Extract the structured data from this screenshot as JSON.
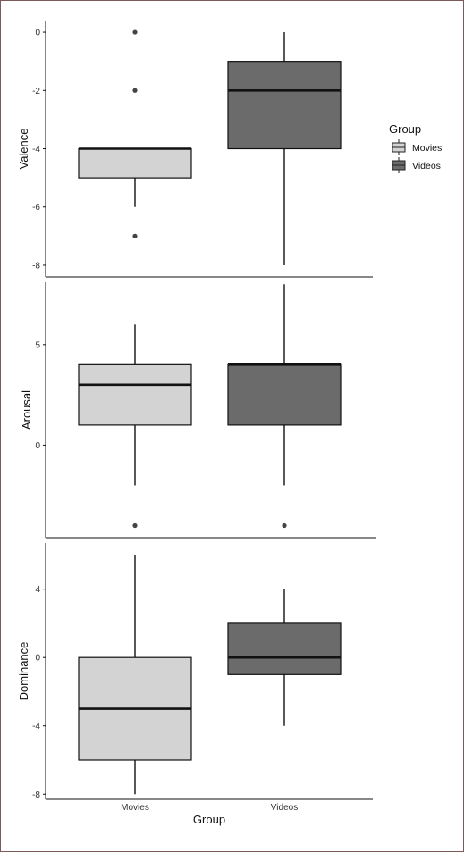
{
  "legend": {
    "title": "Group",
    "items": [
      {
        "label": "Movies",
        "color": "#d3d3d3"
      },
      {
        "label": "Videos",
        "color": "#6b6b6b"
      }
    ]
  },
  "x_axis": {
    "title": "Group",
    "categories": [
      "Movies",
      "Videos"
    ]
  },
  "chart_data": [
    {
      "type": "box",
      "ylabel": "Valence",
      "ylim": [
        -8.4,
        0.4
      ],
      "yticks": [
        0,
        -2,
        -4,
        -6,
        -8
      ],
      "boxes": [
        {
          "group": "Movies",
          "whisker_low": -6,
          "q1": -5,
          "median": -4,
          "q3": -4,
          "whisker_high": -4,
          "outliers": [
            0,
            -2,
            -7
          ]
        },
        {
          "group": "Videos",
          "whisker_low": -8,
          "q1": -4,
          "median": -2,
          "q3": -1,
          "whisker_high": 0,
          "outliers": []
        }
      ]
    },
    {
      "type": "box",
      "ylabel": "Arousal",
      "ylim": [
        -4.6,
        8.1
      ],
      "yticks": [
        5,
        0
      ],
      "boxes": [
        {
          "group": "Movies",
          "whisker_low": -2,
          "q1": 1,
          "median": 3,
          "q3": 4,
          "whisker_high": 6,
          "outliers": [
            -4
          ]
        },
        {
          "group": "Videos",
          "whisker_low": -2,
          "q1": 1,
          "median": 4,
          "q3": 4,
          "whisker_high": 8,
          "outliers": [
            -4
          ]
        }
      ]
    },
    {
      "type": "box",
      "ylabel": "Dominance",
      "ylim": [
        -8.3,
        6.7
      ],
      "yticks": [
        4,
        0,
        -4,
        -8
      ],
      "boxes": [
        {
          "group": "Movies",
          "whisker_low": -8,
          "q1": -6,
          "median": -3,
          "q3": 0,
          "whisker_high": 6,
          "outliers": []
        },
        {
          "group": "Videos",
          "whisker_low": -4,
          "q1": -1,
          "median": 0,
          "q3": 2,
          "whisker_high": 4,
          "outliers": []
        }
      ]
    }
  ]
}
